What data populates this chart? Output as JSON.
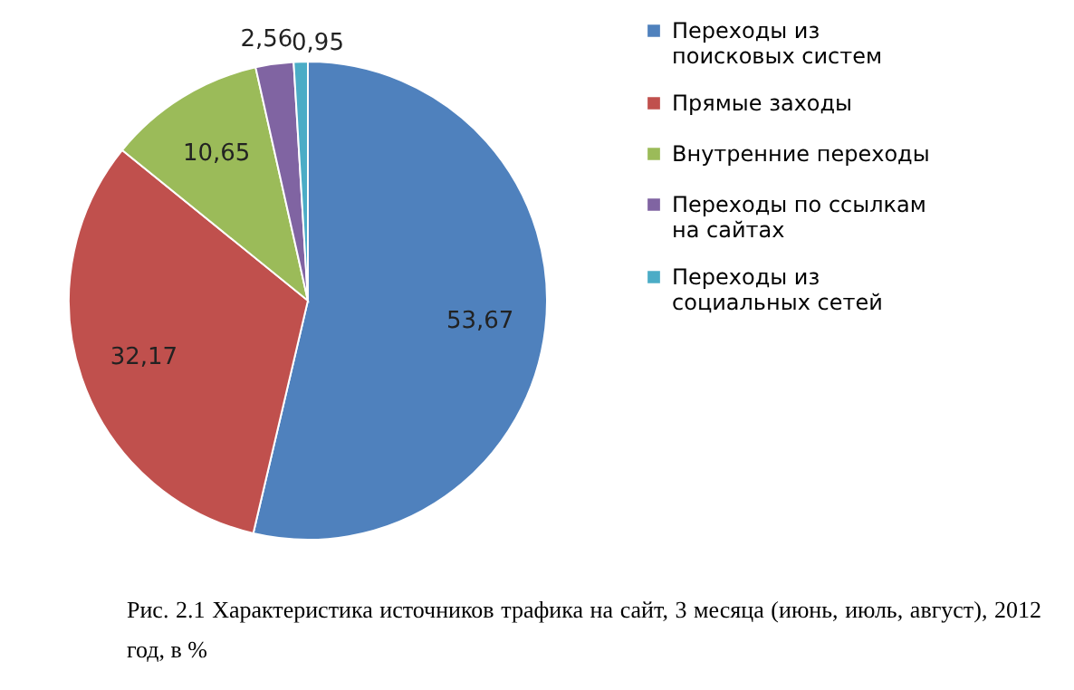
{
  "chart_data": {
    "type": "pie",
    "categories": [
      "Переходы из поисковых систем",
      "Прямые заходы",
      "Внутренние переходы",
      "Переходы по ссылкам на сайтах",
      "Переходы из социальных сетей"
    ],
    "values": [
      53.67,
      32.17,
      10.65,
      2.56,
      0.95
    ],
    "colors": [
      "#4f81bd",
      "#c0504d",
      "#9bbb59",
      "#8064a2",
      "#4bacc6"
    ],
    "data_labels": true,
    "value_labels": [
      "53,67",
      "32,17",
      "10,65",
      "2,56",
      "0,95"
    ],
    "legend": "right",
    "annotations": [
      "Рис. 2.1 Характеристика источников трафика на сайт, 3 месяца (июнь, июль, август), 2012 год, в %"
    ]
  }
}
